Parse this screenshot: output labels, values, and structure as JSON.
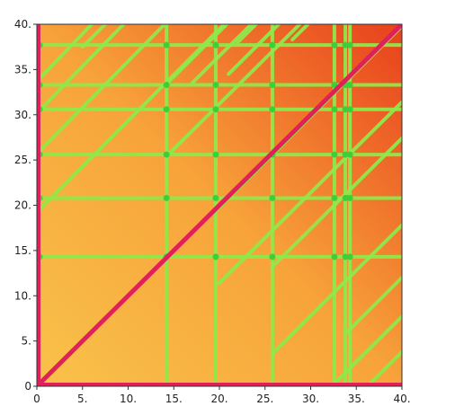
{
  "chart_data": {
    "type": "heatmap",
    "title": "",
    "xlabel": "",
    "ylabel": "",
    "xlim": [
      0,
      40
    ],
    "ylim": [
      0,
      40
    ],
    "x_ticks": [
      0,
      5,
      10,
      15,
      20,
      25,
      30,
      35,
      40
    ],
    "y_ticks": [
      0,
      5,
      10,
      15,
      20,
      25,
      30,
      35,
      40
    ],
    "x_tick_labels": [
      "0",
      "5.",
      "10.",
      "15.",
      "20.",
      "25.",
      "30.",
      "35.",
      "40."
    ],
    "y_tick_labels": [
      "0",
      "5.",
      "10.",
      "15.",
      "20.",
      "25.",
      "30.",
      "35.",
      "40."
    ],
    "grid": false,
    "legend": "none",
    "colors": {
      "background_dark": "#e8401c",
      "background_light": "#f7a33a",
      "background_lower_left": "#f9c24a",
      "line": "#8fe84a",
      "line_node": "#3ccf3a",
      "diagonal": "#e0205a"
    },
    "diagonal": [
      [
        0,
        0
      ],
      [
        40,
        40
      ]
    ],
    "vertical_lines_x": [
      0.3,
      14.2,
      19.6,
      25.8,
      32.6,
      33.8,
      34.3
    ],
    "horizontal_lines_y": [
      14.3,
      20.8,
      25.6,
      30.6,
      33.3,
      37.7
    ],
    "diagonal_lines": [
      [
        [
          0.3,
          19.5
        ],
        [
          20.5,
          40
        ]
      ],
      [
        [
          0.3,
          26
        ],
        [
          14,
          40
        ]
      ],
      [
        [
          0.3,
          30.5
        ],
        [
          9.5,
          40
        ]
      ],
      [
        [
          0.3,
          34
        ],
        [
          6,
          40
        ]
      ],
      [
        [
          5,
          37.5
        ],
        [
          7.5,
          40
        ]
      ],
      [
        [
          14.2,
          25.4
        ],
        [
          28.8,
          40
        ]
      ],
      [
        [
          14.2,
          33.4
        ],
        [
          20.8,
          40
        ]
      ],
      [
        [
          17,
          33.5
        ],
        [
          23.5,
          40
        ]
      ],
      [
        [
          21,
          34.5
        ],
        [
          26.5,
          40
        ]
      ],
      [
        [
          22,
          38
        ],
        [
          24,
          40
        ]
      ],
      [
        [
          28,
          38.3
        ],
        [
          29.7,
          40
        ]
      ],
      [
        [
          19.6,
          19.4
        ],
        [
          40,
          39.8
        ]
      ],
      [
        [
          20,
          11.4
        ],
        [
          40,
          31.4
        ]
      ],
      [
        [
          25.8,
          13.2
        ],
        [
          40,
          27.4
        ]
      ],
      [
        [
          25.8,
          3.6
        ],
        [
          40,
          17.8
        ]
      ],
      [
        [
          32.6,
          0.3
        ],
        [
          40,
          7.7
        ]
      ],
      [
        [
          34,
          6
        ],
        [
          40,
          12
        ]
      ],
      [
        [
          36.5,
          0.3
        ],
        [
          40,
          3.8
        ]
      ]
    ]
  }
}
